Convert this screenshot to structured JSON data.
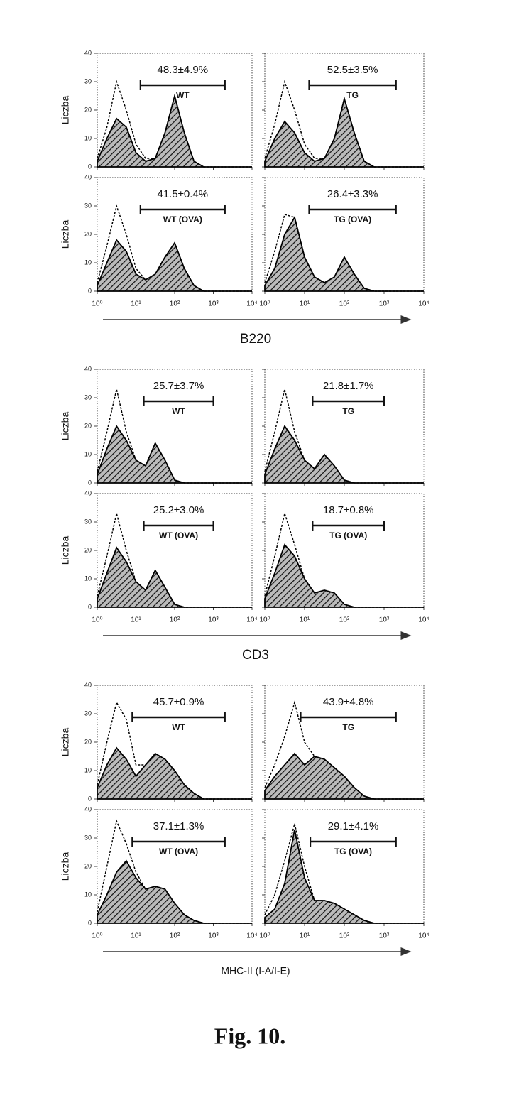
{
  "caption": "Fig. 10.",
  "groups": [
    {
      "xlabel": "B220"
    },
    {
      "xlabel": "CD3"
    },
    {
      "xlabel": "MHC-II (I-A/I-E)"
    }
  ],
  "x": [
    1,
    1.78,
    3.16,
    5.62,
    10,
    17.8,
    31.6,
    56.2,
    100,
    178,
    316,
    562,
    1000,
    1778,
    3162,
    5623,
    10000
  ],
  "chart_data": [
    {
      "type": "area",
      "ylabel": "Liczba",
      "annotation": "48.3±4.9%",
      "label": "WT",
      "gate": [
        13,
        2000
      ],
      "xscale": "log",
      "xlim": [
        1,
        10000
      ],
      "xticks": [
        {
          "value": 1,
          "label": "10⁰"
        },
        {
          "value": 10,
          "label": "10¹"
        },
        {
          "value": 100,
          "label": "10²"
        },
        {
          "value": 1000,
          "label": "10³"
        },
        {
          "value": 10000,
          "label": "10⁴"
        }
      ],
      "ylim": [
        0,
        40
      ],
      "yticks": [
        0,
        10,
        20,
        30,
        40
      ],
      "series": [
        {
          "style": "dashed",
          "color": "#000000",
          "values": [
            3,
            14,
            30,
            20,
            8,
            3,
            3,
            12,
            25,
            12,
            2,
            0,
            0,
            0,
            0,
            0,
            0
          ]
        },
        {
          "style": "hatched",
          "color": "#000000",
          "values": [
            2,
            10,
            17,
            14,
            5,
            2,
            3,
            12,
            25,
            12,
            2,
            0,
            0,
            0,
            0,
            0,
            0
          ]
        }
      ]
    },
    {
      "type": "area",
      "annotation": "52.5±3.5%",
      "label": "TG",
      "gate": [
        13,
        2000
      ],
      "xscale": "log",
      "xlim": [
        1,
        10000
      ],
      "xticks": [
        1,
        10,
        100,
        1000,
        10000
      ],
      "ylim": [
        0,
        40
      ],
      "yticks": [
        0,
        10,
        20,
        30,
        40
      ],
      "series": [
        {
          "style": "dashed",
          "color": "#000000",
          "values": [
            3,
            15,
            30,
            20,
            8,
            3,
            3,
            10,
            24,
            12,
            2,
            0,
            0,
            0,
            0,
            0,
            0
          ]
        },
        {
          "style": "hatched",
          "color": "#000000",
          "values": [
            2,
            10,
            16,
            12,
            5,
            2,
            3,
            10,
            24,
            12,
            2,
            0,
            0,
            0,
            0,
            0,
            0
          ]
        }
      ]
    },
    {
      "type": "area",
      "ylabel": "Liczba",
      "annotation": "41.5±0.4%",
      "label": "WT (OVA)",
      "gate": [
        13,
        2000
      ],
      "xscale": "log",
      "xlim": [
        1,
        10000
      ],
      "xticks": [
        {
          "value": 1,
          "label": "10⁰"
        },
        {
          "value": 10,
          "label": "10¹"
        },
        {
          "value": 100,
          "label": "10²"
        },
        {
          "value": 1000,
          "label": "10³"
        },
        {
          "value": 10000,
          "label": "10⁴"
        }
      ],
      "ylim": [
        0,
        40
      ],
      "yticks": [
        0,
        10,
        20,
        30,
        40
      ],
      "series": [
        {
          "style": "dashed",
          "color": "#000000",
          "values": [
            3,
            16,
            30,
            20,
            8,
            4,
            6,
            12,
            17,
            8,
            2,
            0,
            0,
            0,
            0,
            0,
            0
          ]
        },
        {
          "style": "hatched",
          "color": "#000000",
          "values": [
            2,
            10,
            18,
            14,
            6,
            4,
            6,
            12,
            17,
            8,
            2,
            0,
            0,
            0,
            0,
            0,
            0
          ]
        }
      ]
    },
    {
      "type": "area",
      "annotation": "26.4±3.3%",
      "label": "TG (OVA)",
      "gate": [
        13,
        2000
      ],
      "xscale": "log",
      "xlim": [
        1,
        10000
      ],
      "xticks": [
        {
          "value": 1,
          "label": "10⁰"
        },
        {
          "value": 10,
          "label": "10¹"
        },
        {
          "value": 100,
          "label": "10²"
        },
        {
          "value": 1000,
          "label": "10³"
        },
        {
          "value": 10000,
          "label": "10⁴"
        }
      ],
      "ylim": [
        0,
        40
      ],
      "yticks": [
        0,
        10,
        20,
        30,
        40
      ],
      "series": [
        {
          "style": "dashed",
          "color": "#000000",
          "values": [
            3,
            14,
            27,
            26,
            12,
            5,
            3,
            5,
            12,
            6,
            1,
            0,
            0,
            0,
            0,
            0,
            0
          ]
        },
        {
          "style": "hatched",
          "color": "#000000",
          "values": [
            2,
            8,
            20,
            26,
            12,
            5,
            3,
            5,
            12,
            6,
            1,
            0,
            0,
            0,
            0,
            0,
            0
          ]
        }
      ]
    },
    {
      "type": "area",
      "ylabel": "Liczba",
      "annotation": "25.7±3.7%",
      "label": "WT",
      "gate": [
        16,
        1000
      ],
      "xscale": "log",
      "xlim": [
        1,
        10000
      ],
      "xticks": [
        1,
        10,
        100,
        1000,
        10000
      ],
      "ylim": [
        0,
        40
      ],
      "yticks": [
        0,
        10,
        20,
        30,
        40
      ],
      "series": [
        {
          "style": "dashed",
          "color": "#000000",
          "values": [
            4,
            18,
            33,
            18,
            8,
            6,
            14,
            8,
            1,
            0,
            0,
            0,
            0,
            0,
            0,
            0,
            0
          ]
        },
        {
          "style": "hatched",
          "color": "#000000",
          "values": [
            3,
            12,
            20,
            15,
            8,
            6,
            14,
            8,
            1,
            0,
            0,
            0,
            0,
            0,
            0,
            0,
            0
          ]
        }
      ]
    },
    {
      "type": "area",
      "annotation": "21.8±1.7%",
      "label": "TG",
      "gate": [
        16,
        1000
      ],
      "xscale": "log",
      "xlim": [
        1,
        10000
      ],
      "xticks": [
        1,
        10,
        100,
        1000,
        10000
      ],
      "ylim": [
        0,
        40
      ],
      "yticks": [
        0,
        10,
        20,
        30,
        40
      ],
      "series": [
        {
          "style": "dashed",
          "color": "#000000",
          "values": [
            4,
            18,
            33,
            18,
            8,
            5,
            10,
            6,
            1,
            0,
            0,
            0,
            0,
            0,
            0,
            0,
            0
          ]
        },
        {
          "style": "hatched",
          "color": "#000000",
          "values": [
            3,
            12,
            20,
            15,
            8,
            5,
            10,
            6,
            1,
            0,
            0,
            0,
            0,
            0,
            0,
            0,
            0
          ]
        }
      ]
    },
    {
      "type": "area",
      "ylabel": "Liczba",
      "annotation": "25.2±3.0%",
      "label": "WT (OVA)",
      "gate": [
        16,
        1000
      ],
      "xscale": "log",
      "xlim": [
        1,
        10000
      ],
      "xticks": [
        {
          "value": 1,
          "label": "10⁰"
        },
        {
          "value": 10,
          "label": "10¹"
        },
        {
          "value": 100,
          "label": "10²"
        },
        {
          "value": 1000,
          "label": "10³"
        },
        {
          "value": 10000,
          "label": "10⁴"
        }
      ],
      "ylim": [
        0,
        40
      ],
      "yticks": [
        0,
        10,
        20,
        30,
        40
      ],
      "series": [
        {
          "style": "dashed",
          "color": "#000000",
          "values": [
            4,
            18,
            33,
            20,
            9,
            6,
            13,
            7,
            1,
            0,
            0,
            0,
            0,
            0,
            0,
            0,
            0
          ]
        },
        {
          "style": "hatched",
          "color": "#000000",
          "values": [
            3,
            12,
            21,
            16,
            9,
            6,
            13,
            7,
            1,
            0,
            0,
            0,
            0,
            0,
            0,
            0,
            0
          ]
        }
      ]
    },
    {
      "type": "area",
      "annotation": "18.7±0.8%",
      "label": "TG (OVA)",
      "gate": [
        16,
        1000
      ],
      "xscale": "log",
      "xlim": [
        1,
        10000
      ],
      "xticks": [
        {
          "value": 1,
          "label": "10⁰"
        },
        {
          "value": 10,
          "label": "10¹"
        },
        {
          "value": 100,
          "label": "10²"
        },
        {
          "value": 1000,
          "label": "10³"
        },
        {
          "value": 10000,
          "label": "10⁴"
        }
      ],
      "ylim": [
        0,
        40
      ],
      "yticks": [
        0,
        10,
        20,
        30,
        40
      ],
      "series": [
        {
          "style": "dashed",
          "color": "#000000",
          "values": [
            4,
            18,
            33,
            22,
            10,
            5,
            6,
            5,
            1,
            0,
            0,
            0,
            0,
            0,
            0,
            0,
            0
          ]
        },
        {
          "style": "hatched",
          "color": "#000000",
          "values": [
            3,
            12,
            22,
            18,
            10,
            5,
            6,
            5,
            1,
            0,
            0,
            0,
            0,
            0,
            0,
            0,
            0
          ]
        }
      ]
    },
    {
      "type": "area",
      "ylabel": "Liczba",
      "annotation": "45.7±0.9%",
      "label": "WT",
      "gate": [
        8,
        2000
      ],
      "xscale": "log",
      "xlim": [
        1,
        10000
      ],
      "xticks": [
        1,
        10,
        100,
        1000,
        10000
      ],
      "ylim": [
        0,
        40
      ],
      "yticks": [
        0,
        10,
        20,
        30,
        40
      ],
      "series": [
        {
          "style": "dashed",
          "color": "#000000",
          "values": [
            5,
            20,
            34,
            28,
            12,
            12,
            16,
            14,
            10,
            5,
            2,
            0,
            0,
            0,
            0,
            0,
            0
          ]
        },
        {
          "style": "hatched",
          "color": "#000000",
          "values": [
            4,
            12,
            18,
            14,
            8,
            12,
            16,
            14,
            10,
            5,
            2,
            0,
            0,
            0,
            0,
            0,
            0
          ]
        }
      ]
    },
    {
      "type": "area",
      "annotation": "43.9±4.8%",
      "label": "TG",
      "gate": [
        8,
        2000
      ],
      "xscale": "log",
      "xlim": [
        1,
        10000
      ],
      "xticks": [
        1,
        10,
        100,
        1000,
        10000
      ],
      "ylim": [
        0,
        40
      ],
      "yticks": [
        0,
        10,
        20,
        30,
        40
      ],
      "series": [
        {
          "style": "dashed",
          "color": "#000000",
          "values": [
            4,
            12,
            22,
            34,
            20,
            15,
            14,
            11,
            8,
            4,
            1,
            0,
            0,
            0,
            0,
            0,
            0
          ]
        },
        {
          "style": "hatched",
          "color": "#000000",
          "values": [
            3,
            8,
            12,
            16,
            12,
            15,
            14,
            11,
            8,
            4,
            1,
            0,
            0,
            0,
            0,
            0,
            0
          ]
        }
      ]
    },
    {
      "type": "area",
      "ylabel": "Liczba",
      "annotation": "37.1±1.3%",
      "label": "WT (OVA)",
      "gate": [
        8,
        2000
      ],
      "xscale": "log",
      "xlim": [
        1,
        10000
      ],
      "xticks": [
        {
          "value": 1,
          "label": "10⁰"
        },
        {
          "value": 10,
          "label": "10¹"
        },
        {
          "value": 100,
          "label": "10²"
        },
        {
          "value": 1000,
          "label": "10³"
        },
        {
          "value": 10000,
          "label": "10⁴"
        }
      ],
      "ylim": [
        0,
        40
      ],
      "yticks": [
        0,
        10,
        20,
        30,
        40
      ],
      "series": [
        {
          "style": "dashed",
          "color": "#000000",
          "values": [
            4,
            20,
            36,
            28,
            18,
            12,
            13,
            12,
            7,
            3,
            1,
            0,
            0,
            0,
            0,
            0,
            0
          ]
        },
        {
          "style": "hatched",
          "color": "#000000",
          "values": [
            3,
            10,
            18,
            22,
            16,
            12,
            13,
            12,
            7,
            3,
            1,
            0,
            0,
            0,
            0,
            0,
            0
          ]
        }
      ]
    },
    {
      "type": "area",
      "annotation": "29.1±4.1%",
      "label": "TG (OVA)",
      "gate": [
        14,
        2000
      ],
      "xscale": "log",
      "xlim": [
        1,
        10000
      ],
      "xticks": [
        {
          "value": 1,
          "label": "10⁰"
        },
        {
          "value": 10,
          "label": "10¹"
        },
        {
          "value": 100,
          "label": "10²"
        },
        {
          "value": 1000,
          "label": "10³"
        },
        {
          "value": 10000,
          "label": "10⁴"
        }
      ],
      "ylim": [
        0,
        40
      ],
      "yticks": [
        0,
        10,
        20,
        30,
        40
      ],
      "series": [
        {
          "style": "dashed",
          "color": "#000000",
          "values": [
            3,
            10,
            22,
            35,
            20,
            8,
            8,
            7,
            5,
            3,
            1,
            0,
            0,
            0,
            0,
            0,
            0
          ]
        },
        {
          "style": "hatched",
          "color": "#000000",
          "values": [
            2,
            5,
            14,
            33,
            16,
            8,
            8,
            7,
            5,
            3,
            1,
            0,
            0,
            0,
            0,
            0,
            0
          ]
        }
      ]
    }
  ]
}
